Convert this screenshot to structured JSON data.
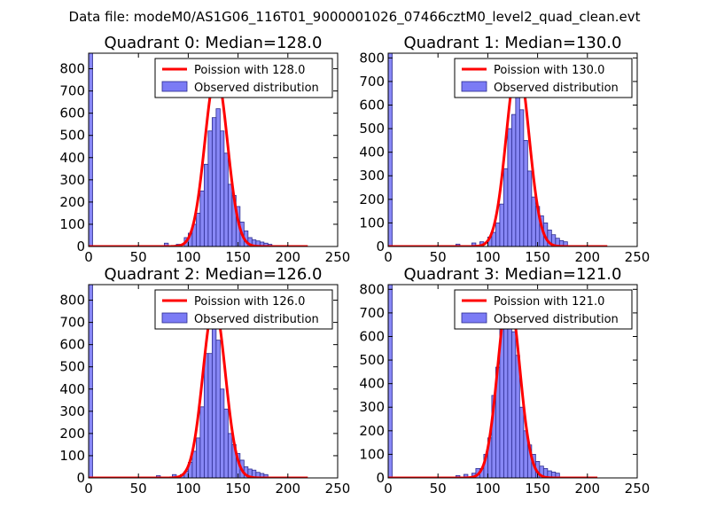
{
  "figure": {
    "suptitle": "Data file: modeM0/AS1G06_116T01_9000001026_07466cztM0_level2_quad_clean.evt",
    "background": "#ffffff"
  },
  "colors": {
    "bar_fill": "#7b7bf5",
    "bar_edge": "#2b2b8f",
    "poisson_line": "#ff0000"
  },
  "chart_data": [
    {
      "type": "bar",
      "title": "Quadrant 0: Median=128.0",
      "legend": [
        "Poission with 128.0",
        "Observed distribution"
      ],
      "legend_position": "top-right",
      "xlim": [
        0,
        250
      ],
      "ylim": [
        0,
        870
      ],
      "xticks": [
        0,
        50,
        100,
        150,
        200,
        250
      ],
      "yticks": [
        0,
        100,
        200,
        300,
        400,
        500,
        600,
        700,
        800
      ],
      "poisson": {
        "mean": 128.0,
        "peak": 780,
        "xmax": 220
      },
      "histogram": {
        "bin_width": 4,
        "bins": [
          {
            "x": 0,
            "count": 870
          },
          {
            "x": 76,
            "count": 15
          },
          {
            "x": 88,
            "count": 10
          },
          {
            "x": 96,
            "count": 40
          },
          {
            "x": 100,
            "count": 60
          },
          {
            "x": 104,
            "count": 100
          },
          {
            "x": 108,
            "count": 150
          },
          {
            "x": 112,
            "count": 250
          },
          {
            "x": 116,
            "count": 370
          },
          {
            "x": 120,
            "count": 520
          },
          {
            "x": 124,
            "count": 580
          },
          {
            "x": 128,
            "count": 620
          },
          {
            "x": 132,
            "count": 520
          },
          {
            "x": 136,
            "count": 420
          },
          {
            "x": 140,
            "count": 280
          },
          {
            "x": 144,
            "count": 230
          },
          {
            "x": 148,
            "count": 180
          },
          {
            "x": 152,
            "count": 110
          },
          {
            "x": 156,
            "count": 70
          },
          {
            "x": 160,
            "count": 40
          },
          {
            "x": 164,
            "count": 30
          },
          {
            "x": 168,
            "count": 25
          },
          {
            "x": 172,
            "count": 20
          },
          {
            "x": 176,
            "count": 15
          },
          {
            "x": 180,
            "count": 10
          }
        ]
      }
    },
    {
      "type": "bar",
      "title": "Quadrant 1: Median=130.0",
      "legend": [
        "Poission with 130.0",
        "Observed distribution"
      ],
      "legend_position": "top-right",
      "xlim": [
        0,
        250
      ],
      "ylim": [
        0,
        820
      ],
      "xticks": [
        0,
        50,
        100,
        150,
        200,
        250
      ],
      "yticks": [
        0,
        100,
        200,
        300,
        400,
        500,
        600,
        700,
        800
      ],
      "poisson": {
        "mean": 130.0,
        "peak": 780,
        "xmax": 220
      },
      "histogram": {
        "bin_width": 4,
        "bins": [
          {
            "x": 0,
            "count": 820
          },
          {
            "x": 68,
            "count": 10
          },
          {
            "x": 84,
            "count": 15
          },
          {
            "x": 92,
            "count": 20
          },
          {
            "x": 100,
            "count": 40
          },
          {
            "x": 104,
            "count": 60
          },
          {
            "x": 108,
            "count": 100
          },
          {
            "x": 112,
            "count": 180
          },
          {
            "x": 116,
            "count": 330
          },
          {
            "x": 120,
            "count": 500
          },
          {
            "x": 124,
            "count": 560
          },
          {
            "x": 128,
            "count": 760
          },
          {
            "x": 132,
            "count": 580
          },
          {
            "x": 136,
            "count": 450
          },
          {
            "x": 140,
            "count": 320
          },
          {
            "x": 144,
            "count": 210
          },
          {
            "x": 148,
            "count": 170
          },
          {
            "x": 152,
            "count": 130
          },
          {
            "x": 156,
            "count": 100
          },
          {
            "x": 160,
            "count": 70
          },
          {
            "x": 164,
            "count": 50
          },
          {
            "x": 168,
            "count": 35
          },
          {
            "x": 172,
            "count": 25
          },
          {
            "x": 176,
            "count": 20
          }
        ]
      }
    },
    {
      "type": "bar",
      "title": "Quadrant 2: Median=126.0",
      "legend": [
        "Poission with 126.0",
        "Observed distribution"
      ],
      "legend_position": "top-right",
      "xlim": [
        0,
        250
      ],
      "ylim": [
        0,
        870
      ],
      "xticks": [
        0,
        50,
        100,
        150,
        200,
        250
      ],
      "yticks": [
        0,
        100,
        200,
        300,
        400,
        500,
        600,
        700,
        800
      ],
      "poisson": {
        "mean": 126.0,
        "peak": 780,
        "xmax": 220
      },
      "histogram": {
        "bin_width": 4,
        "bins": [
          {
            "x": 0,
            "count": 870
          },
          {
            "x": 68,
            "count": 10
          },
          {
            "x": 84,
            "count": 15
          },
          {
            "x": 92,
            "count": 15
          },
          {
            "x": 96,
            "count": 30
          },
          {
            "x": 100,
            "count": 70
          },
          {
            "x": 104,
            "count": 120
          },
          {
            "x": 108,
            "count": 180
          },
          {
            "x": 112,
            "count": 320
          },
          {
            "x": 116,
            "count": 560
          },
          {
            "x": 120,
            "count": 560
          },
          {
            "x": 124,
            "count": 690
          },
          {
            "x": 128,
            "count": 620
          },
          {
            "x": 132,
            "count": 400
          },
          {
            "x": 136,
            "count": 310
          },
          {
            "x": 140,
            "count": 200
          },
          {
            "x": 144,
            "count": 150
          },
          {
            "x": 148,
            "count": 110
          },
          {
            "x": 152,
            "count": 80
          },
          {
            "x": 156,
            "count": 50
          },
          {
            "x": 160,
            "count": 40
          },
          {
            "x": 164,
            "count": 35
          },
          {
            "x": 168,
            "count": 25
          },
          {
            "x": 172,
            "count": 20
          },
          {
            "x": 176,
            "count": 15
          }
        ]
      }
    },
    {
      "type": "bar",
      "title": "Quadrant 3: Median=121.0",
      "legend": [
        "Poission with 121.0",
        "Observed distribution"
      ],
      "legend_position": "top-right",
      "xlim": [
        0,
        250
      ],
      "ylim": [
        0,
        820
      ],
      "xticks": [
        0,
        50,
        100,
        150,
        200,
        250
      ],
      "yticks": [
        0,
        100,
        200,
        300,
        400,
        500,
        600,
        700,
        800
      ],
      "poisson": {
        "mean": 121.0,
        "peak": 780,
        "xmax": 210
      },
      "histogram": {
        "bin_width": 4,
        "bins": [
          {
            "x": 0,
            "count": 820
          },
          {
            "x": 68,
            "count": 10
          },
          {
            "x": 76,
            "count": 15
          },
          {
            "x": 84,
            "count": 20
          },
          {
            "x": 88,
            "count": 40
          },
          {
            "x": 92,
            "count": 40
          },
          {
            "x": 96,
            "count": 100
          },
          {
            "x": 100,
            "count": 170
          },
          {
            "x": 104,
            "count": 350
          },
          {
            "x": 108,
            "count": 470
          },
          {
            "x": 112,
            "count": 720
          },
          {
            "x": 116,
            "count": 700
          },
          {
            "x": 120,
            "count": 780
          },
          {
            "x": 124,
            "count": 620
          },
          {
            "x": 128,
            "count": 520
          },
          {
            "x": 132,
            "count": 300
          },
          {
            "x": 136,
            "count": 200
          },
          {
            "x": 140,
            "count": 140
          },
          {
            "x": 144,
            "count": 100
          },
          {
            "x": 148,
            "count": 70
          },
          {
            "x": 152,
            "count": 50
          },
          {
            "x": 156,
            "count": 40
          },
          {
            "x": 160,
            "count": 30
          },
          {
            "x": 164,
            "count": 25
          },
          {
            "x": 168,
            "count": 20
          }
        ]
      }
    }
  ]
}
